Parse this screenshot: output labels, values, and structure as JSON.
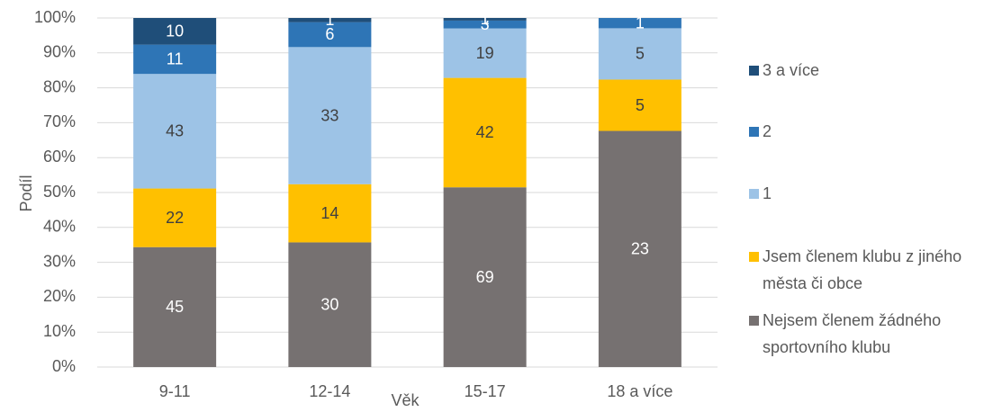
{
  "chart_data": {
    "type": "stacked_percent_bar",
    "x_label": "Věk",
    "y_label": "Podíl",
    "categories": [
      "9-11",
      "12-14",
      "15-17",
      "18 a více"
    ],
    "series": [
      {
        "name": "Nejsem členem žádného sportovního klubu",
        "color": "#767171",
        "label_color": "#ffffff",
        "values": [
          45,
          30,
          69,
          23
        ]
      },
      {
        "name": "Jsem členem klubu z jiného města či obce",
        "color": "#ffc000",
        "label_color": "#404040",
        "values": [
          22,
          14,
          42,
          5
        ]
      },
      {
        "name": "1",
        "color": "#9dc3e6",
        "label_color": "#404040",
        "values": [
          43,
          33,
          19,
          5
        ]
      },
      {
        "name": "2",
        "color": "#2e75b6",
        "label_color": "#ffffff",
        "values": [
          11,
          6,
          3,
          1
        ]
      },
      {
        "name": "3 a více",
        "color": "#1f4e79",
        "label_color": "#ffffff",
        "values": [
          10,
          1,
          1,
          0
        ]
      }
    ],
    "ylim": [
      0,
      100
    ],
    "yticks": [
      {
        "value": 0,
        "label": "0%"
      },
      {
        "value": 10,
        "label": "10%"
      },
      {
        "value": 20,
        "label": "20%"
      },
      {
        "value": 30,
        "label": "30%"
      },
      {
        "value": 40,
        "label": "40%"
      },
      {
        "value": 50,
        "label": "50%"
      },
      {
        "value": 60,
        "label": "60%"
      },
      {
        "value": 70,
        "label": "70%"
      },
      {
        "value": 80,
        "label": "80%"
      },
      {
        "value": 90,
        "label": "90%"
      },
      {
        "value": 100,
        "label": "100%"
      }
    ],
    "grid": true,
    "legend": "right"
  }
}
